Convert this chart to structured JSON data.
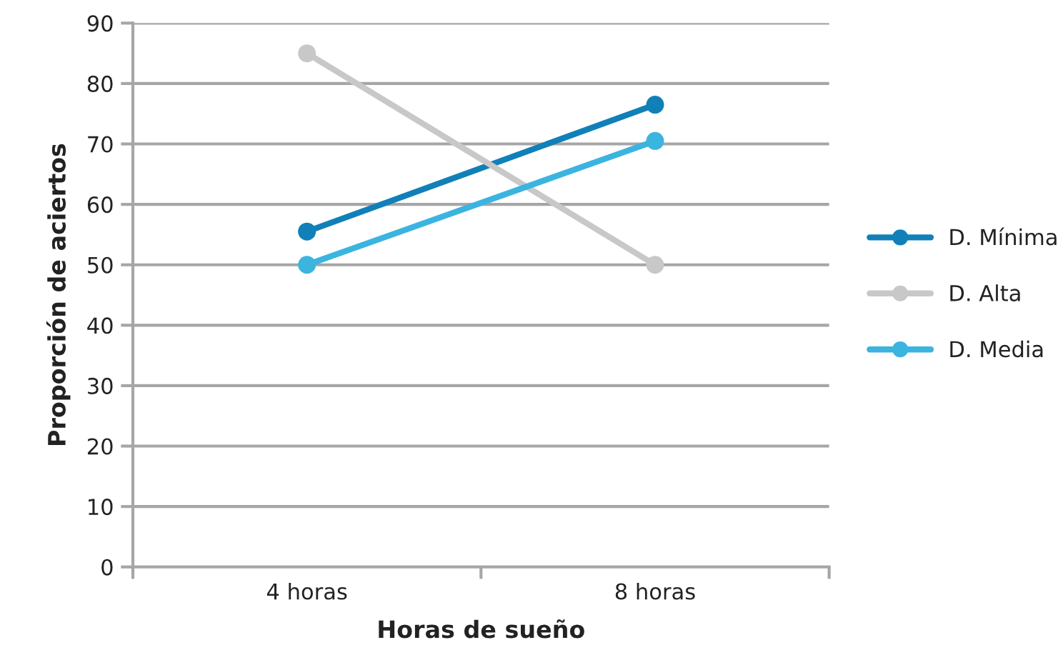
{
  "chart_data": {
    "type": "line",
    "xlabel": "Horas de sueño",
    "ylabel": "Proporción de aciertos",
    "categories": [
      "4 horas",
      "8 horas"
    ],
    "series": [
      {
        "name": "D. Mínima",
        "color": "#1180b8",
        "values": [
          55.5,
          76.5
        ]
      },
      {
        "name": "D. Alta",
        "color": "#c8c8c8",
        "values": [
          85,
          50
        ]
      },
      {
        "name": "D. Media",
        "color": "#3bb4e0",
        "values": [
          50,
          70.5
        ]
      }
    ],
    "ylim": [
      0,
      90
    ],
    "yticks": [
      0,
      10,
      20,
      30,
      40,
      50,
      60,
      70,
      80,
      90
    ],
    "grid": "y",
    "legend": "right",
    "marker": "circle",
    "line_style": "solid"
  }
}
